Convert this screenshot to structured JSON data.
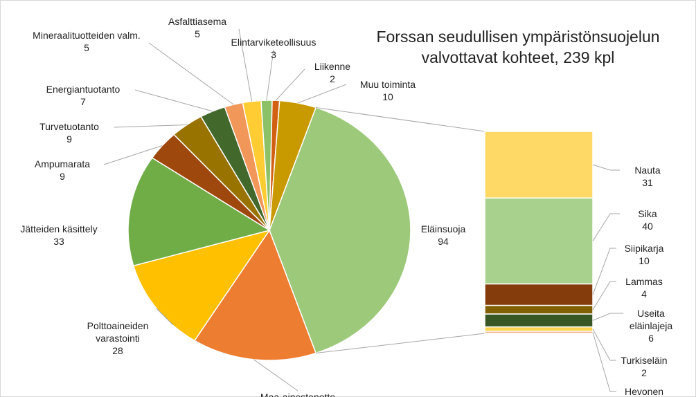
{
  "chart_data": {
    "type": "pie",
    "title": "Forssan seudullisen ympäristönsuojelun valvottavat kohteet, 239 kpl",
    "categories": [
      "Eläinsuoja",
      "Maa-ainestenotto",
      "Polttoaineiden varastointi",
      "Jätteiden käsittely",
      "Ampumarata",
      "Turvetuotanto",
      "Energiantuotanto",
      "Mineraalituotteiden valm.",
      "Asfalttiasema",
      "Elintarviketeollisuus",
      "Liikenne",
      "Muu toiminta"
    ],
    "values": [
      94,
      34,
      28,
      33,
      9,
      9,
      7,
      5,
      5,
      3,
      2,
      10
    ],
    "colors": [
      "#9dc97a",
      "#ed7d31",
      "#ffc000",
      "#70ad47",
      "#9e480e",
      "#997300",
      "#43682b",
      "#f1975a",
      "#ffcd33",
      "#8cc168",
      "#d26012",
      "#c99a00"
    ],
    "breakdown": {
      "categories": [
        "Nauta",
        "Sika",
        "Siipikarja",
        "Lammas",
        "Useita eläinlajeja",
        "Turkiseläin",
        "Hevonen"
      ],
      "values": [
        31,
        40,
        10,
        4,
        6,
        2,
        1
      ],
      "colors": [
        "#ffd966",
        "#a9d18e",
        "#843c0c",
        "#806000",
        "#375623",
        "#ffd44f",
        "#f4b183"
      ]
    }
  }
}
